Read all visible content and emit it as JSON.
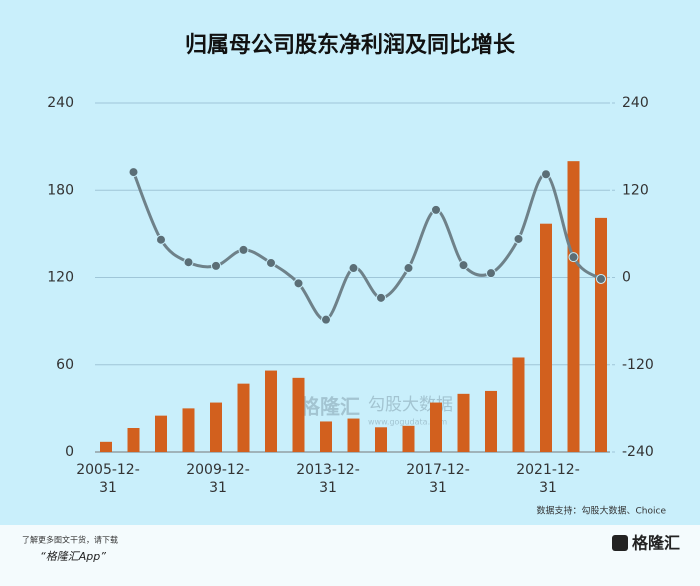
{
  "chart_data": {
    "type": "bar_line",
    "title": "归属母公司股东净利润及同比增长",
    "categories": [
      "2005-12-31",
      null,
      null,
      null,
      "2009-12-31",
      null,
      null,
      null,
      "2013-12-31",
      null,
      null,
      null,
      "2017-12-31",
      null,
      null,
      null,
      "2021-12-31",
      null,
      null
    ],
    "series": [
      {
        "type": "bar",
        "color": "#d2601e",
        "values": [
          7,
          16.5,
          25,
          30,
          34,
          47,
          56,
          51,
          21,
          23,
          17,
          18,
          34,
          40,
          42,
          65,
          157,
          200,
          161
        ]
      },
      {
        "type": "line",
        "axis": "y2",
        "color": "#6e8189",
        "values": [
          null,
          145,
          52,
          21,
          16,
          38,
          20,
          -8,
          -58,
          13,
          -28,
          13,
          93,
          17,
          6,
          53,
          142,
          28,
          -2
        ]
      }
    ],
    "ylim": [
      0,
      240
    ],
    "yticks": [
      0,
      60,
      120,
      180,
      240
    ],
    "y2lim": [
      -240,
      240
    ],
    "y2ticks": [
      -240,
      -120,
      0,
      120,
      240
    ],
    "grid": true,
    "source": "数据支持：勾股大数据、Choice"
  },
  "watermark": {
    "brand": "格隆汇",
    "product": "勾股大数据",
    "url": "www.gogudata.com"
  },
  "footer": {
    "note": "了解更多图文干货，请下载",
    "app": "“格隆汇App”",
    "logo": "格隆汇"
  }
}
